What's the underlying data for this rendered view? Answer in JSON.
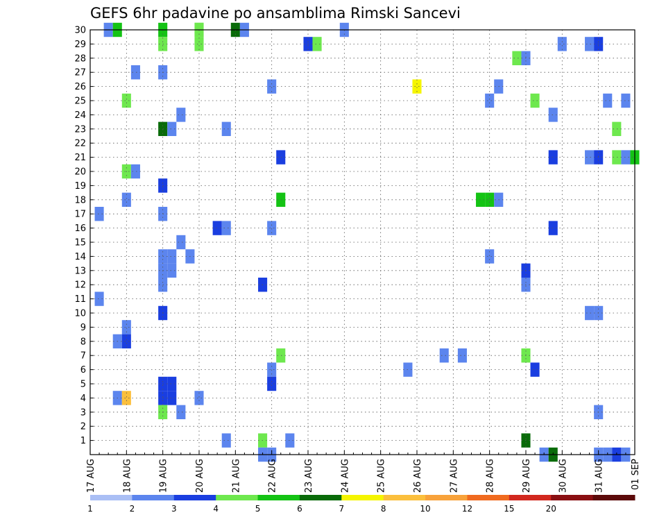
{
  "chart_data": {
    "type": "heatmap",
    "title": "GEFS 6hr padavine po ansamblima Rimski Sancevi",
    "xlabel": "",
    "ylabel": "",
    "x_tick_labels": [
      "17 AUG",
      "18 AUG",
      "19 AUG",
      "20 AUG",
      "21 AUG",
      "22 AUG",
      "23 AUG",
      "24 AUG",
      "25 AUG",
      "26 AUG",
      "27 AUG",
      "28 AUG",
      "29 AUG",
      "30 AUG",
      "31 AUG",
      "01 SEP"
    ],
    "x_range": [
      0,
      60
    ],
    "x_units": "6-hour steps from 17 AUG 00Z",
    "y_tick_labels": [
      "1",
      "2",
      "3",
      "4",
      "5",
      "6",
      "7",
      "8",
      "9",
      "10",
      "11",
      "12",
      "13",
      "14",
      "15",
      "16",
      "17",
      "18",
      "19",
      "20",
      "21",
      "22",
      "23",
      "24",
      "25",
      "26",
      "27",
      "28",
      "29",
      "30"
    ],
    "y_range": [
      0,
      30
    ],
    "grid": true,
    "colorbar_labels": [
      "1",
      "2",
      "3",
      "4",
      "5",
      "6",
      "7",
      "8",
      "10",
      "12",
      "15",
      "20"
    ],
    "colorbar_colors": [
      "#aabff5",
      "#5c85ee",
      "#1a3ee0",
      "#6ee84e",
      "#14c314",
      "#096b09",
      "#f5f500",
      "#fbbf3c",
      "#f8a23a",
      "#f06a1f",
      "#d2281e",
      "#8a0f12",
      "#5c0a0a"
    ],
    "cells": [
      [
        2,
        30,
        1
      ],
      [
        3,
        30,
        4
      ],
      [
        8,
        30,
        4
      ],
      [
        12,
        30,
        3
      ],
      [
        12,
        30,
        3
      ],
      [
        16,
        30,
        5
      ],
      [
        17,
        30,
        1
      ],
      [
        28,
        30,
        1
      ],
      [
        8,
        29,
        3
      ],
      [
        12,
        29,
        3
      ],
      [
        24,
        29,
        2
      ],
      [
        25,
        29,
        3
      ],
      [
        52,
        29,
        1
      ],
      [
        55,
        29,
        1
      ],
      [
        56,
        29,
        2
      ],
      [
        47,
        28,
        3
      ],
      [
        48,
        28,
        1
      ],
      [
        5,
        27,
        1
      ],
      [
        8,
        27,
        1
      ],
      [
        20,
        26,
        1
      ],
      [
        36,
        26,
        6
      ],
      [
        45,
        26,
        1
      ],
      [
        4,
        25,
        3
      ],
      [
        44,
        25,
        1
      ],
      [
        49,
        25,
        3
      ],
      [
        57,
        25,
        1
      ],
      [
        59,
        25,
        1
      ],
      [
        10,
        24,
        1
      ],
      [
        51,
        24,
        1
      ],
      [
        8,
        23,
        5
      ],
      [
        9,
        23,
        1
      ],
      [
        15,
        23,
        1
      ],
      [
        58,
        23,
        3
      ],
      [
        21,
        21,
        2
      ],
      [
        51,
        21,
        2
      ],
      [
        55,
        21,
        1
      ],
      [
        56,
        21,
        2
      ],
      [
        58,
        21,
        3
      ],
      [
        59,
        21,
        1
      ],
      [
        60,
        21,
        4
      ],
      [
        4,
        20,
        3
      ],
      [
        5,
        20,
        1
      ],
      [
        8,
        19,
        2
      ],
      [
        4,
        18,
        1
      ],
      [
        21,
        18,
        4
      ],
      [
        43,
        18,
        4
      ],
      [
        44,
        18,
        4
      ],
      [
        45,
        18,
        1
      ],
      [
        1,
        17,
        1
      ],
      [
        8,
        17,
        1
      ],
      [
        14,
        16,
        2
      ],
      [
        15,
        16,
        1
      ],
      [
        20,
        16,
        1
      ],
      [
        51,
        16,
        2
      ],
      [
        10,
        15,
        1
      ],
      [
        8,
        14,
        1
      ],
      [
        9,
        14,
        1
      ],
      [
        11,
        14,
        1
      ],
      [
        44,
        14,
        1
      ],
      [
        8,
        13,
        1
      ],
      [
        9,
        13,
        1
      ],
      [
        48,
        13,
        2
      ],
      [
        8,
        12,
        1
      ],
      [
        19,
        12,
        2
      ],
      [
        48,
        12,
        1
      ],
      [
        1,
        11,
        1
      ],
      [
        55,
        10,
        1
      ],
      [
        56,
        10,
        1
      ],
      [
        8,
        10,
        2
      ],
      [
        4,
        9,
        1
      ],
      [
        3,
        8,
        1
      ],
      [
        4,
        8,
        2
      ],
      [
        21,
        7,
        3
      ],
      [
        39,
        7,
        1
      ],
      [
        41,
        7,
        1
      ],
      [
        48,
        7,
        3
      ],
      [
        20,
        6,
        1
      ],
      [
        35,
        6,
        1
      ],
      [
        49,
        6,
        2
      ],
      [
        8,
        5,
        2
      ],
      [
        9,
        5,
        2
      ],
      [
        20,
        5,
        2
      ],
      [
        3,
        4,
        1
      ],
      [
        4,
        4,
        7
      ],
      [
        8,
        4,
        2
      ],
      [
        9,
        4,
        2
      ],
      [
        12,
        4,
        1
      ],
      [
        8,
        3,
        3
      ],
      [
        10,
        3,
        1
      ],
      [
        56,
        3,
        1
      ],
      [
        15,
        1,
        1
      ],
      [
        19,
        1,
        3
      ],
      [
        22,
        1,
        1
      ],
      [
        48,
        1,
        5
      ],
      [
        19,
        0,
        1
      ],
      [
        20,
        0,
        1
      ],
      [
        50,
        0,
        1
      ],
      [
        51,
        0,
        5
      ],
      [
        56,
        0,
        1
      ],
      [
        57,
        0,
        1
      ],
      [
        58,
        0,
        2
      ],
      [
        59,
        0,
        1
      ]
    ]
  }
}
